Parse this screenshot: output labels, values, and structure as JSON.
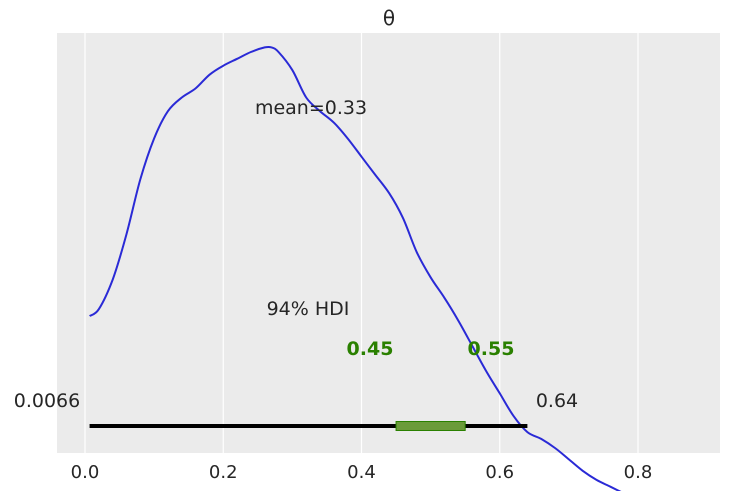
{
  "chart_data": {
    "type": "line",
    "title": "θ",
    "xlabel": "",
    "ylabel": "",
    "xlim": [
      -0.045,
      0.915
    ],
    "ylim": [
      0,
      1
    ],
    "grid": true,
    "xticks": [
      0.0,
      0.2,
      0.4,
      0.6,
      0.8
    ],
    "xtick_labels": [
      "0.0",
      "0.2",
      "0.4",
      "0.6",
      "0.8"
    ],
    "series": [
      {
        "color": "#2a2ad6",
        "x": [
          0.0066,
          0.02,
          0.04,
          0.06,
          0.08,
          0.1,
          0.12,
          0.14,
          0.16,
          0.18,
          0.2,
          0.22,
          0.24,
          0.26,
          0.27,
          0.28,
          0.3,
          0.32,
          0.34,
          0.36,
          0.38,
          0.4,
          0.42,
          0.44,
          0.46,
          0.48,
          0.5,
          0.52,
          0.54,
          0.56,
          0.58,
          0.6,
          0.62,
          0.64,
          0.66,
          0.68,
          0.7,
          0.72,
          0.74,
          0.76,
          0.78,
          0.8,
          0.82,
          0.84,
          0.86,
          0.876
        ],
        "y": [
          0.42,
          0.435,
          0.5,
          0.6,
          0.72,
          0.81,
          0.87,
          0.9,
          0.92,
          0.95,
          0.97,
          0.985,
          1.0,
          1.01,
          1.01,
          1.0,
          0.96,
          0.9,
          0.87,
          0.845,
          0.81,
          0.77,
          0.73,
          0.69,
          0.635,
          0.56,
          0.505,
          0.46,
          0.41,
          0.355,
          0.3,
          0.25,
          0.2,
          0.165,
          0.15,
          0.13,
          0.105,
          0.08,
          0.06,
          0.045,
          0.03,
          0.015,
          0.003,
          -0.01,
          -0.02,
          -0.022
        ]
      }
    ],
    "annotations": {
      "mean_label": "mean=0.33",
      "hdi_label": "94% HDI",
      "hdi_low": 0.0066,
      "hdi_high": 0.64,
      "hdi_low_label": "0.0066",
      "hdi_high_label": "0.64",
      "quartile_low": 0.45,
      "quartile_high": 0.55,
      "quartile_low_label": "0.45",
      "quartile_high_label": "0.55"
    }
  }
}
